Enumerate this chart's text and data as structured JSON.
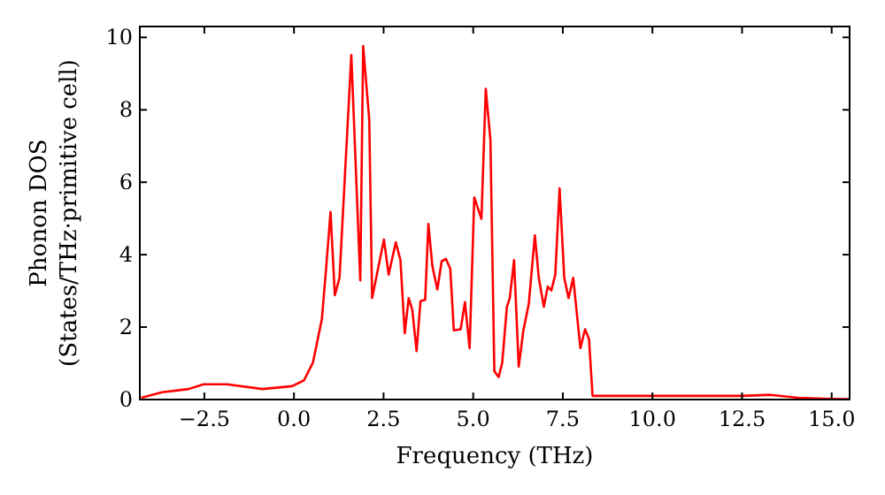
{
  "chart_data": {
    "type": "line",
    "xlabel": "Frequency (THz)",
    "ylabel": "Phonon DOS\n(States/THz·primitive cell)",
    "xlim": [
      -4.3,
      15.5
    ],
    "ylim": [
      0,
      10.3
    ],
    "xticks": [
      {
        "value": -2.5,
        "label": "−2.5"
      },
      {
        "value": 0,
        "label": "0.0"
      },
      {
        "value": 2.5,
        "label": "2.5"
      },
      {
        "value": 5,
        "label": "5.0"
      },
      {
        "value": 7.5,
        "label": "7.5"
      },
      {
        "value": 10,
        "label": "10.0"
      },
      {
        "value": 12.5,
        "label": "12.5"
      },
      {
        "value": 15,
        "label": "15.0"
      }
    ],
    "yticks": [
      0,
      2,
      4,
      6,
      8,
      10
    ],
    "grid": false,
    "marker": "none",
    "line_style": "solid",
    "series": [
      {
        "color": "#ff0000",
        "x": [
          -4.26,
          -3.68,
          -2.94,
          -2.52,
          -1.87,
          -0.88,
          -0.05,
          0.28,
          0.53,
          0.78,
          0.89,
          1.02,
          1.14,
          1.27,
          1.6,
          1.85,
          1.93,
          2.1,
          2.18,
          2.51,
          2.64,
          2.84,
          2.97,
          3.09,
          3.2,
          3.3,
          3.42,
          3.53,
          3.66,
          3.75,
          3.86,
          4.0,
          4.12,
          4.24,
          4.36,
          4.46,
          4.65,
          4.77,
          4.9,
          5.03,
          5.23,
          5.35,
          5.48,
          5.59,
          5.71,
          5.81,
          5.94,
          6.02,
          6.14,
          6.27,
          6.4,
          6.55,
          6.72,
          6.83,
          6.97,
          7.08,
          7.18,
          7.29,
          7.41,
          7.54,
          7.66,
          7.79,
          7.99,
          8.12,
          8.23,
          8.33,
          10.0,
          12.5,
          13.3,
          14.06,
          15.0,
          15.5
        ],
        "values": [
          0.05,
          0.2,
          0.29,
          0.42,
          0.42,
          0.29,
          0.37,
          0.53,
          1.02,
          2.23,
          3.54,
          5.18,
          2.88,
          3.36,
          9.51,
          3.29,
          9.76,
          7.73,
          2.8,
          4.42,
          3.45,
          4.34,
          3.85,
          1.83,
          2.8,
          2.48,
          1.34,
          2.72,
          2.75,
          4.85,
          3.69,
          3.04,
          3.82,
          3.88,
          3.61,
          1.91,
          1.94,
          2.69,
          1.42,
          5.58,
          4.99,
          8.58,
          7.17,
          0.78,
          0.62,
          1.02,
          2.56,
          2.8,
          3.85,
          0.91,
          1.91,
          2.64,
          4.53,
          3.36,
          2.56,
          3.12,
          3.01,
          3.45,
          5.83,
          3.36,
          2.8,
          3.36,
          1.42,
          1.94,
          1.67,
          0.1,
          0.1,
          0.1,
          0.13,
          0.05,
          0.02,
          0.01
        ]
      }
    ]
  }
}
